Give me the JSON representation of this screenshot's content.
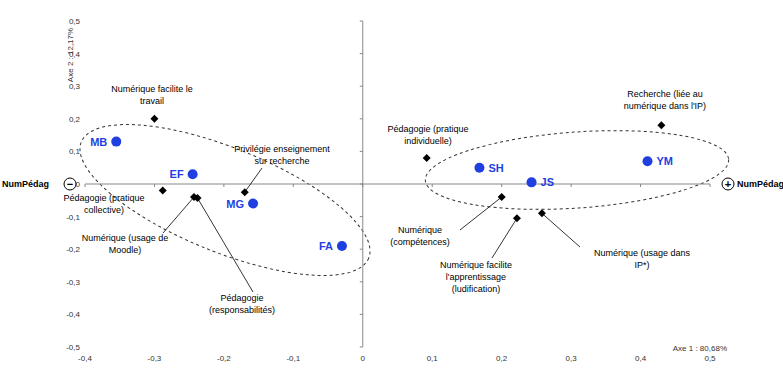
{
  "chart_data": {
    "type": "scatter",
    "x_label": "Axe 1 : 80,68%",
    "y_label": "Axe 2 : 12,17%",
    "axis_poles": {
      "name": "NumPédag",
      "minus": "−",
      "plus": "+"
    },
    "xlim": [
      -0.4,
      0.5
    ],
    "ylim": [
      -0.5,
      0.5
    ],
    "xticks": [
      {
        "value": -0.4,
        "label": "-0,4"
      },
      {
        "value": -0.3,
        "label": "-0,3"
      },
      {
        "value": -0.2,
        "label": "-0,2"
      },
      {
        "value": -0.1,
        "label": "-0,1"
      },
      0,
      {
        "value": 0.1,
        "label": "0,1"
      },
      {
        "value": 0.2,
        "label": "0,2"
      },
      {
        "value": 0.3,
        "label": "0,3"
      },
      {
        "value": 0.4,
        "label": "0,4"
      },
      {
        "value": 0.5,
        "label": "0,5"
      }
    ],
    "yticks": [
      {
        "value": -0.5,
        "label": "-0,5"
      },
      {
        "value": -0.4,
        "label": "-0,4"
      },
      {
        "value": -0.3,
        "label": "-0,3"
      },
      {
        "value": -0.2,
        "label": "-0,2"
      },
      {
        "value": -0.1,
        "label": "-0,1"
      },
      0,
      {
        "value": 0.1,
        "label": "0,1"
      },
      {
        "value": 0.2,
        "label": "0,2"
      },
      {
        "value": 0.3,
        "label": "0,3"
      },
      {
        "value": 0.4,
        "label": "0,4"
      },
      {
        "value": 0.5,
        "label": "0,5"
      }
    ],
    "grid": false,
    "series": [
      {
        "color": "#1f3fe0",
        "marker": "circle",
        "labels": [
          "MB",
          "EF",
          "MG",
          "FA",
          "SH",
          "JS",
          "YM"
        ],
        "x": [
          -0.355,
          -0.245,
          -0.158,
          -0.03,
          0.168,
          0.243,
          0.41
        ],
        "values": [
          0.13,
          0.03,
          -0.06,
          -0.19,
          0.05,
          0.005,
          0.07
        ]
      },
      {
        "color": "#000000",
        "marker": "diamond",
        "labels": [
          "Numérique facilite le travail",
          "Pédagogie (pratique collective)",
          "Numérique (usage de Moodle)",
          "Privilégie enseignement sur recherche",
          "Pédagogie (responsabilités)",
          "Pédagogie (pratique individuelle)",
          "Recherche (liée au numérique dans l'IP)",
          "Numérique (compétences)",
          "Numérique facilite l'apprentissage (ludification)",
          "Numérique (usage dans IP*)"
        ],
        "x": [
          -0.3,
          -0.288,
          -0.243,
          -0.17,
          -0.238,
          0.092,
          0.43,
          0.2,
          0.222,
          0.258
        ],
        "values": [
          0.2,
          -0.02,
          -0.04,
          -0.025,
          -0.043,
          0.08,
          0.18,
          -0.04,
          -0.105,
          -0.09
        ]
      }
    ]
  }
}
